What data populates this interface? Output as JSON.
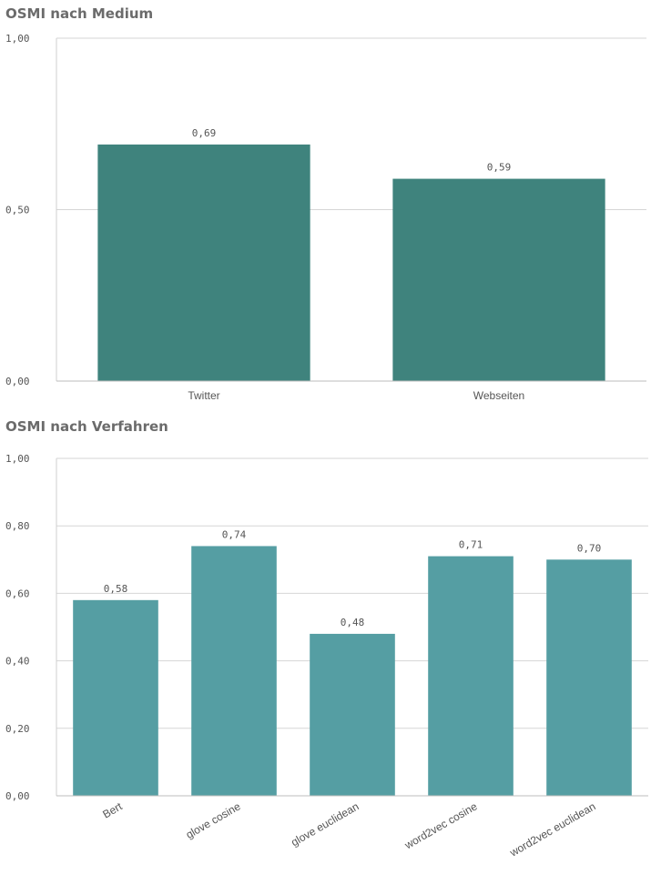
{
  "chart_data": [
    {
      "type": "bar",
      "title": "OSMI nach Medium",
      "categories": [
        "Twitter",
        "Webseiten"
      ],
      "values": [
        0.69,
        0.59
      ],
      "value_labels": [
        "0,69",
        "0,59"
      ],
      "ylim": [
        0,
        1
      ],
      "yticks": [
        0,
        0.5,
        1
      ],
      "ytick_labels": [
        "0,00",
        "0,50",
        "1,00"
      ],
      "bar_color": "#3f837d",
      "grid": true,
      "xlabel": "",
      "ylabel": ""
    },
    {
      "type": "bar",
      "title": "OSMI nach Verfahren",
      "categories": [
        "Bert",
        "glove cosine",
        "glove euclidean",
        "word2vec cosine",
        "word2vec euclidean"
      ],
      "values": [
        0.58,
        0.74,
        0.48,
        0.71,
        0.7
      ],
      "value_labels": [
        "0,58",
        "0,74",
        "0,48",
        "0,71",
        "0,70"
      ],
      "ylim": [
        0,
        1
      ],
      "yticks": [
        0,
        0.2,
        0.4,
        0.6,
        0.8,
        1
      ],
      "ytick_labels": [
        "0,00",
        "0,20",
        "0,40",
        "0,60",
        "0,80",
        "1,00"
      ],
      "bar_color": "#559ea3",
      "grid": true,
      "xlabel": "",
      "ylabel": ""
    }
  ]
}
